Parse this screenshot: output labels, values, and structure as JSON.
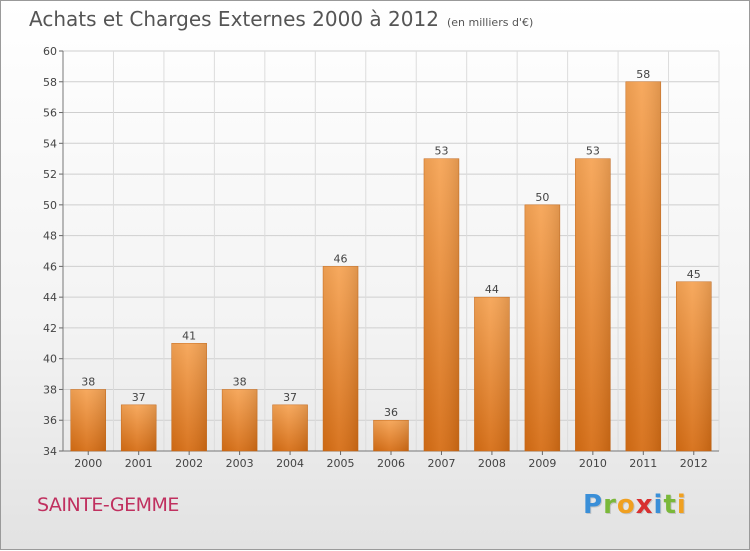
{
  "header": {
    "title": "Achats et Charges Externes 2000 à 2012",
    "unit": "(en milliers d'€)"
  },
  "footer": {
    "commune": "SAINTE-GEMME",
    "logo_letters": [
      "P",
      "r",
      "o",
      "x",
      "i",
      "t",
      "i"
    ],
    "logo_colors": [
      "#3a8fd8",
      "#7ab83a",
      "#f0a020",
      "#d83030",
      "#3a8fd8",
      "#7ab83a",
      "#f0a020"
    ]
  },
  "chart_data": {
    "type": "bar",
    "title": "Achats et Charges Externes 2000 à 2012",
    "categories": [
      "2000",
      "2001",
      "2002",
      "2003",
      "2004",
      "2005",
      "2006",
      "2007",
      "2008",
      "2009",
      "2010",
      "2011",
      "2012"
    ],
    "values": [
      38,
      37,
      41,
      38,
      37,
      46,
      36,
      53,
      44,
      50,
      53,
      58,
      45
    ],
    "data_labels": [
      "38",
      "37",
      "41",
      "38",
      "37",
      "46",
      "36",
      "53",
      "44",
      "50",
      "53",
      "58",
      "45"
    ],
    "ylim": [
      34,
      60
    ],
    "yticks": [
      34,
      36,
      38,
      40,
      42,
      44,
      46,
      48,
      50,
      52,
      54,
      56,
      58,
      60
    ],
    "ytick_labels": [
      "34",
      "36",
      "38",
      "40",
      "42",
      "44",
      "46",
      "48",
      "50",
      "52",
      "54",
      "56",
      "58",
      "60"
    ],
    "grid": true,
    "bar_color": "#f08a2e"
  }
}
